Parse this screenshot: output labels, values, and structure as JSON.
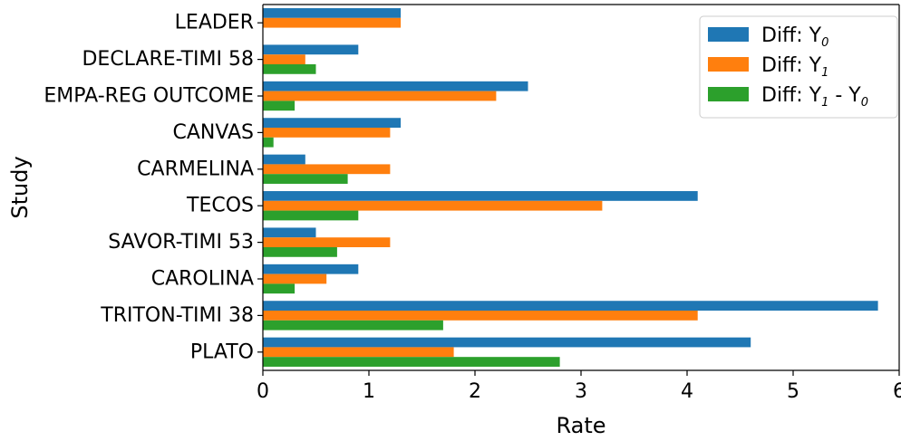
{
  "chart_data": {
    "type": "bar",
    "orientation": "horizontal",
    "categories": [
      "LEADER",
      "DECLARE-TIMI 58",
      "EMPA-REG OUTCOME",
      "CANVAS",
      "CARMELINA",
      "TECOS",
      "SAVOR-TIMI 53",
      "CAROLINA",
      "TRITON-TIMI 38",
      "PLATO"
    ],
    "series": [
      {
        "name": "Diff: Y0",
        "legend_main": "Diff: Y",
        "legend_sub": "0",
        "color": "#1f77b4",
        "values": [
          1.3,
          0.9,
          2.5,
          1.3,
          0.4,
          4.1,
          0.5,
          0.9,
          5.8,
          4.6
        ]
      },
      {
        "name": "Diff: Y1",
        "legend_main": "Diff: Y",
        "legend_sub": "1",
        "color": "#ff7f0e",
        "values": [
          1.3,
          0.4,
          2.2,
          1.2,
          1.2,
          3.2,
          1.2,
          0.6,
          4.1,
          1.8
        ]
      },
      {
        "name": "Diff: Y1 - Y0",
        "legend_main": "Diff: Y",
        "legend_sub": "1",
        "legend_main2": " - Y",
        "legend_sub2": "0",
        "color": "#2ca02c",
        "values": [
          0.0,
          0.5,
          0.3,
          0.1,
          0.8,
          0.9,
          0.7,
          0.3,
          1.7,
          2.8
        ]
      }
    ],
    "xlabel": "Rate",
    "ylabel": "Study",
    "xlim": [
      0,
      6
    ],
    "xticks": [
      0,
      1,
      2,
      3,
      4,
      5,
      6
    ],
    "grid": false,
    "legend_position": "top-right"
  }
}
